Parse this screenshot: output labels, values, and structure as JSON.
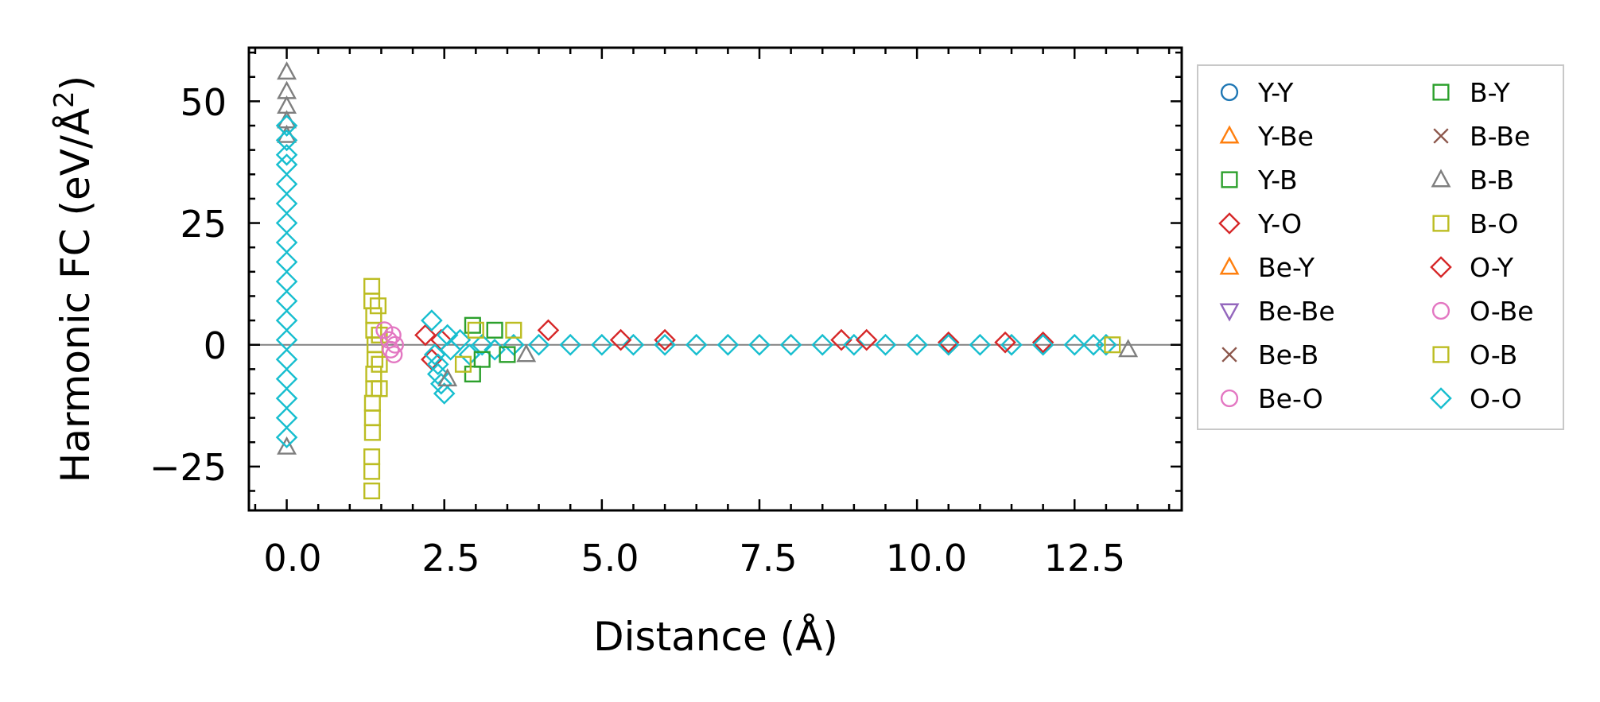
{
  "chart_data": {
    "type": "scatter",
    "title": "",
    "xlabel": "Distance (Å)",
    "ylabel": "Harmonic FC (eV/Å",
    "ylabel_sup": "2",
    "ylabel_close": ")",
    "xlim": [
      -0.6,
      14.2
    ],
    "ylim": [
      -34,
      61
    ],
    "xticks": [
      0.0,
      2.5,
      5.0,
      7.5,
      10.0,
      12.5
    ],
    "xtick_labels": [
      "0.0",
      "2.5",
      "5.0",
      "7.5",
      "10.0",
      "12.5"
    ],
    "yticks": [
      -25,
      0,
      25,
      50
    ],
    "ytick_labels": [
      "−25",
      "0",
      "25",
      "50"
    ],
    "legend_position": "outside-right",
    "legend_columns": 2,
    "colors": {
      "blue": "#1f77b4",
      "orange": "#ff7f0e",
      "green": "#2ca02c",
      "red": "#d62728",
      "purple": "#9467bd",
      "brown": "#8c564b",
      "pink": "#e377c2",
      "gray": "#7f7f7f",
      "olive": "#bcbd22",
      "cyan": "#17becf"
    },
    "series": [
      {
        "name": "Y-Y",
        "marker": "circle",
        "color": "#1f77b4"
      },
      {
        "name": "Y-Be",
        "marker": "triangle-up",
        "color": "#ff7f0e"
      },
      {
        "name": "Y-B",
        "marker": "square",
        "color": "#2ca02c"
      },
      {
        "name": "Y-O",
        "marker": "diamond",
        "color": "#d62728"
      },
      {
        "name": "Be-Y",
        "marker": "triangle-up",
        "color": "#ff7f0e"
      },
      {
        "name": "Be-Be",
        "marker": "triangle-down",
        "color": "#9467bd"
      },
      {
        "name": "Be-B",
        "marker": "x",
        "color": "#8c564b"
      },
      {
        "name": "Be-O",
        "marker": "circle",
        "color": "#e377c2"
      },
      {
        "name": "B-Y",
        "marker": "square",
        "color": "#2ca02c"
      },
      {
        "name": "B-Be",
        "marker": "x",
        "color": "#8c564b"
      },
      {
        "name": "B-B",
        "marker": "triangle-up",
        "color": "#7f7f7f"
      },
      {
        "name": "B-O",
        "marker": "square",
        "color": "#bcbd22"
      },
      {
        "name": "O-Y",
        "marker": "diamond",
        "color": "#d62728"
      },
      {
        "name": "O-Be",
        "marker": "circle",
        "color": "#e377c2"
      },
      {
        "name": "O-B",
        "marker": "square",
        "color": "#bcbd22"
      },
      {
        "name": "O-O",
        "marker": "diamond",
        "color": "#17becf"
      }
    ],
    "points": [
      {
        "s": "B-B",
        "x": 0.0,
        "y": 56
      },
      {
        "s": "B-B",
        "x": 0.0,
        "y": 52
      },
      {
        "s": "B-B",
        "x": 0.0,
        "y": 49
      },
      {
        "s": "B-B",
        "x": 0.0,
        "y": 46
      },
      {
        "s": "B-B",
        "x": 0.0,
        "y": 43
      },
      {
        "s": "B-B",
        "x": 0.0,
        "y": -21
      },
      {
        "s": "O-O",
        "x": 0.0,
        "y": 45
      },
      {
        "s": "O-O",
        "x": 0.0,
        "y": 42
      },
      {
        "s": "O-O",
        "x": 0.0,
        "y": 39
      },
      {
        "s": "O-O",
        "x": 0.0,
        "y": 37
      },
      {
        "s": "O-O",
        "x": 0.0,
        "y": 33
      },
      {
        "s": "O-O",
        "x": 0.0,
        "y": 29
      },
      {
        "s": "O-O",
        "x": 0.0,
        "y": 25
      },
      {
        "s": "O-O",
        "x": 0.0,
        "y": 21
      },
      {
        "s": "O-O",
        "x": 0.0,
        "y": 17
      },
      {
        "s": "O-O",
        "x": 0.0,
        "y": 13
      },
      {
        "s": "O-O",
        "x": 0.0,
        "y": 9
      },
      {
        "s": "O-O",
        "x": 0.0,
        "y": 5
      },
      {
        "s": "O-O",
        "x": 0.0,
        "y": 1
      },
      {
        "s": "O-O",
        "x": 0.0,
        "y": -3
      },
      {
        "s": "O-O",
        "x": 0.0,
        "y": -7
      },
      {
        "s": "O-O",
        "x": 0.0,
        "y": -11
      },
      {
        "s": "O-O",
        "x": 0.0,
        "y": -15
      },
      {
        "s": "O-O",
        "x": 0.0,
        "y": -19
      },
      {
        "s": "B-O",
        "x": 1.35,
        "y": 12
      },
      {
        "s": "B-O",
        "x": 1.35,
        "y": 9
      },
      {
        "s": "B-O",
        "x": 1.38,
        "y": 6
      },
      {
        "s": "B-O",
        "x": 1.38,
        "y": 3
      },
      {
        "s": "B-O",
        "x": 1.4,
        "y": 0
      },
      {
        "s": "B-O",
        "x": 1.4,
        "y": -3
      },
      {
        "s": "B-O",
        "x": 1.38,
        "y": -6
      },
      {
        "s": "B-O",
        "x": 1.38,
        "y": -9
      },
      {
        "s": "B-O",
        "x": 1.36,
        "y": -12
      },
      {
        "s": "B-O",
        "x": 1.36,
        "y": -15
      },
      {
        "s": "B-O",
        "x": 1.36,
        "y": -18
      },
      {
        "s": "B-O",
        "x": 1.35,
        "y": -23
      },
      {
        "s": "B-O",
        "x": 1.35,
        "y": -26
      },
      {
        "s": "B-O",
        "x": 1.35,
        "y": -30
      },
      {
        "s": "B-O",
        "x": 1.45,
        "y": 8
      },
      {
        "s": "B-O",
        "x": 1.47,
        "y": 2
      },
      {
        "s": "B-O",
        "x": 1.47,
        "y": -4
      },
      {
        "s": "B-O",
        "x": 1.47,
        "y": -9
      },
      {
        "s": "O-Be",
        "x": 1.55,
        "y": 3
      },
      {
        "s": "O-Be",
        "x": 1.62,
        "y": 1
      },
      {
        "s": "O-Be",
        "x": 1.65,
        "y": -1
      },
      {
        "s": "O-Be",
        "x": 1.68,
        "y": 2
      },
      {
        "s": "O-Be",
        "x": 1.7,
        "y": -2
      },
      {
        "s": "O-Be",
        "x": 1.72,
        "y": 0
      },
      {
        "s": "Y-O",
        "x": 2.2,
        "y": 2
      },
      {
        "s": "Y-O",
        "x": 2.3,
        "y": -3
      },
      {
        "s": "Y-O",
        "x": 2.45,
        "y": 1
      },
      {
        "s": "Y-O",
        "x": 4.15,
        "y": 3
      },
      {
        "s": "Y-O",
        "x": 6.0,
        "y": 1
      },
      {
        "s": "Y-O",
        "x": 8.8,
        "y": 1
      },
      {
        "s": "Y-O",
        "x": 10.5,
        "y": 0.5
      },
      {
        "s": "Y-O",
        "x": 12.0,
        "y": 0.5
      },
      {
        "s": "O-O",
        "x": 2.3,
        "y": 5
      },
      {
        "s": "O-O",
        "x": 2.35,
        "y": -2
      },
      {
        "s": "O-O",
        "x": 2.4,
        "y": -4
      },
      {
        "s": "O-O",
        "x": 2.4,
        "y": -6
      },
      {
        "s": "O-O",
        "x": 2.45,
        "y": -8
      },
      {
        "s": "O-O",
        "x": 2.5,
        "y": -10
      },
      {
        "s": "O-O",
        "x": 2.55,
        "y": 2
      },
      {
        "s": "O-O",
        "x": 2.6,
        "y": -1
      },
      {
        "s": "O-O",
        "x": 2.75,
        "y": 1
      },
      {
        "s": "O-O",
        "x": 2.9,
        "y": -2
      },
      {
        "s": "O-O",
        "x": 3.1,
        "y": 0
      },
      {
        "s": "O-O",
        "x": 3.3,
        "y": -1
      },
      {
        "s": "O-O",
        "x": 3.6,
        "y": 0
      },
      {
        "s": "O-O",
        "x": 4.0,
        "y": 0
      },
      {
        "s": "O-O",
        "x": 4.5,
        "y": 0
      },
      {
        "s": "O-O",
        "x": 5.0,
        "y": 0
      },
      {
        "s": "O-O",
        "x": 5.5,
        "y": 0
      },
      {
        "s": "O-O",
        "x": 6.0,
        "y": 0
      },
      {
        "s": "O-O",
        "x": 6.5,
        "y": 0
      },
      {
        "s": "O-O",
        "x": 7.0,
        "y": 0
      },
      {
        "s": "O-O",
        "x": 7.5,
        "y": 0
      },
      {
        "s": "O-O",
        "x": 8.0,
        "y": 0
      },
      {
        "s": "O-O",
        "x": 8.5,
        "y": 0
      },
      {
        "s": "O-O",
        "x": 9.0,
        "y": 0
      },
      {
        "s": "O-O",
        "x": 9.5,
        "y": 0
      },
      {
        "s": "O-O",
        "x": 10.0,
        "y": 0
      },
      {
        "s": "O-O",
        "x": 10.5,
        "y": 0
      },
      {
        "s": "O-O",
        "x": 11.0,
        "y": 0
      },
      {
        "s": "O-O",
        "x": 11.5,
        "y": 0
      },
      {
        "s": "O-O",
        "x": 12.0,
        "y": 0
      },
      {
        "s": "O-O",
        "x": 12.5,
        "y": 0
      },
      {
        "s": "O-O",
        "x": 12.8,
        "y": 0
      },
      {
        "s": "O-O",
        "x": 13.0,
        "y": 0
      },
      {
        "s": "B-Y",
        "x": 2.95,
        "y": 4
      },
      {
        "s": "B-Y",
        "x": 2.95,
        "y": -6
      },
      {
        "s": "B-Y",
        "x": 3.1,
        "y": -3
      },
      {
        "s": "B-Y",
        "x": 3.3,
        "y": 3
      },
      {
        "s": "B-Y",
        "x": 3.5,
        "y": -2
      },
      {
        "s": "B-O",
        "x": 2.8,
        "y": -4
      },
      {
        "s": "B-O",
        "x": 3.0,
        "y": 3
      },
      {
        "s": "B-O",
        "x": 3.6,
        "y": 3
      },
      {
        "s": "B-O",
        "x": 13.1,
        "y": 0
      },
      {
        "s": "B-B",
        "x": 2.55,
        "y": -7
      },
      {
        "s": "B-B",
        "x": 3.8,
        "y": -2
      },
      {
        "s": "B-B",
        "x": 13.35,
        "y": -1
      },
      {
        "s": "O-Y",
        "x": 5.3,
        "y": 1
      },
      {
        "s": "O-Y",
        "x": 9.2,
        "y": 1
      },
      {
        "s": "O-Y",
        "x": 11.4,
        "y": 0.5
      }
    ]
  }
}
